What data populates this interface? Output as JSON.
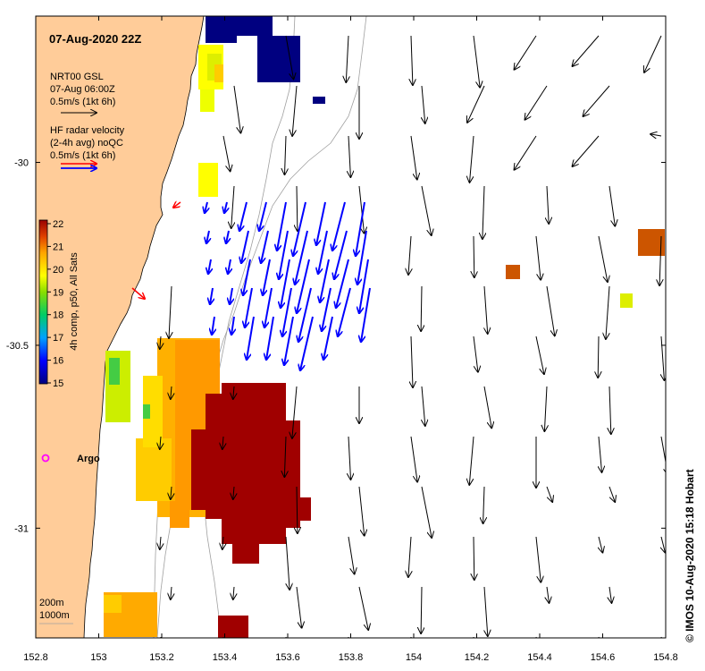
{
  "title": "07-Aug-2020 22Z",
  "legend": {
    "model_name": "NRT00 GSL",
    "model_time": "07-Aug 06:00Z",
    "model_scale": "0.5m/s (1kt 6h)",
    "radar_name": "HF radar velocity",
    "radar_avg": "(2-4h avg) noQC",
    "radar_scale": "0.5m/s (1kt 6h)"
  },
  "colorbar": {
    "label": "4h comp, p50, All Sats",
    "ticks": [
      "22",
      "21",
      "20",
      "19",
      "18",
      "17",
      "16",
      "15"
    ]
  },
  "marker": {
    "label": "Argo",
    "lon": 152.83,
    "lat": -30.82
  },
  "depth_legend": [
    "200m",
    "1000m"
  ],
  "credit": "©  IMOS 10-Aug-2020 15:18 Hobart",
  "colors": {
    "land": "#ffcc99",
    "model_arrow": "#000000",
    "radar_arrow": "#0000ff",
    "marker": "#ff00ff"
  },
  "chart_data": {
    "type": "map",
    "xlim": [
      152.8,
      154.8
    ],
    "ylim": [
      -31.3,
      -29.6
    ],
    "x_tick_labels": [
      "152.8",
      "153",
      "153.2",
      "153.4",
      "153.6",
      "153.8",
      "154",
      "154.2",
      "154.4",
      "154.6",
      "154.8"
    ],
    "y_tick_labels": [
      "-30",
      "-30.5",
      "-31"
    ],
    "sst_range": [
      15,
      22
    ]
  }
}
